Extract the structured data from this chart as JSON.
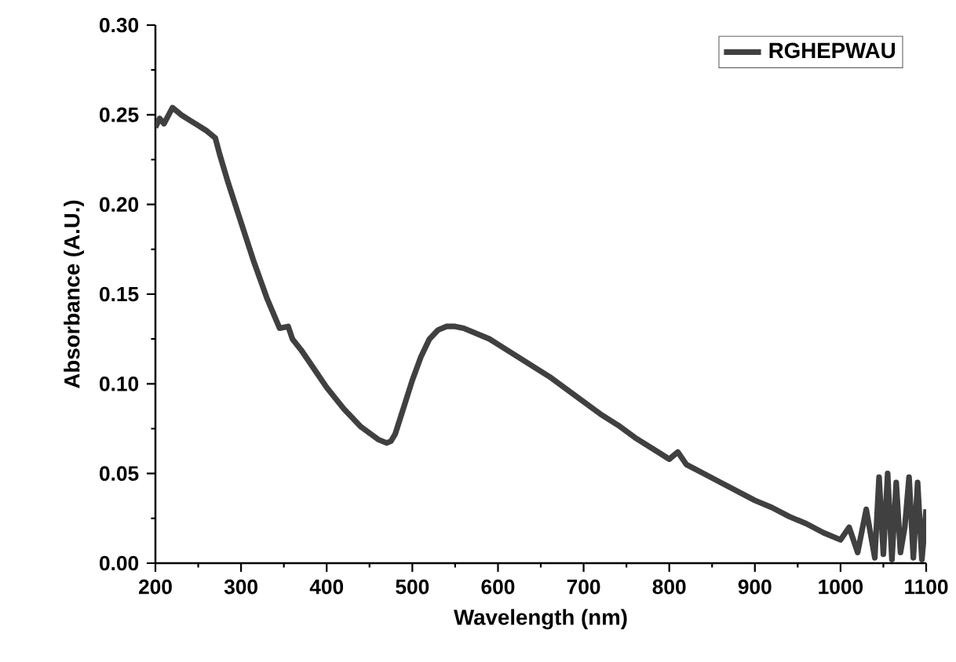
{
  "chart_data": {
    "type": "line",
    "xlabel": "Wavelength (nm)",
    "ylabel": "Absorbance (A.U.)",
    "xlim": [
      200,
      1100
    ],
    "ylim": [
      0,
      0.3
    ],
    "xticks": [
      200,
      300,
      400,
      500,
      600,
      700,
      800,
      900,
      1000,
      1100
    ],
    "yticks": [
      {
        "value": 0,
        "label": "0.00"
      },
      {
        "value": 0.05,
        "label": "0.05"
      },
      {
        "value": 0.1,
        "label": "0.10"
      },
      {
        "value": 0.15,
        "label": "0.15"
      },
      {
        "value": 0.2,
        "label": "0.20"
      },
      {
        "value": 0.25,
        "label": "0.25"
      },
      {
        "value": 0.3,
        "label": "0.30"
      }
    ],
    "legend": "top right",
    "grid": false,
    "marker": "none",
    "line_style": "solid",
    "series": [
      {
        "name": "RGHEPWAU",
        "color": "#404040",
        "x": [
          200,
          205,
          210,
          220,
          225,
          230,
          240,
          250,
          260,
          270,
          275,
          285,
          300,
          315,
          330,
          345,
          355,
          360,
          370,
          380,
          400,
          420,
          440,
          460,
          470,
          475,
          480,
          490,
          500,
          510,
          520,
          530,
          540,
          550,
          560,
          575,
          590,
          600,
          620,
          640,
          660,
          680,
          700,
          720,
          740,
          760,
          780,
          800,
          810,
          820,
          840,
          860,
          880,
          900,
          920,
          940,
          960,
          980,
          1000,
          1010,
          1020,
          1030,
          1040,
          1045,
          1050,
          1055,
          1060,
          1065,
          1070,
          1075,
          1080,
          1085,
          1090,
          1095,
          1100
        ],
        "values": [
          0.243,
          0.248,
          0.245,
          0.254,
          0.252,
          0.25,
          0.247,
          0.244,
          0.241,
          0.237,
          0.228,
          0.212,
          0.19,
          0.168,
          0.148,
          0.131,
          0.132,
          0.125,
          0.119,
          0.112,
          0.098,
          0.086,
          0.076,
          0.069,
          0.067,
          0.068,
          0.072,
          0.087,
          0.102,
          0.115,
          0.125,
          0.13,
          0.132,
          0.132,
          0.131,
          0.128,
          0.125,
          0.122,
          0.116,
          0.11,
          0.104,
          0.097,
          0.09,
          0.083,
          0.077,
          0.07,
          0.064,
          0.058,
          0.062,
          0.055,
          0.05,
          0.045,
          0.04,
          0.035,
          0.031,
          0.026,
          0.022,
          0.017,
          0.013,
          0.02,
          0.006,
          0.03,
          0.003,
          0.048,
          0.005,
          0.05,
          0.002,
          0.045,
          0.006,
          0.02,
          0.048,
          0.003,
          0.045,
          0.002,
          0.03
        ]
      }
    ]
  }
}
